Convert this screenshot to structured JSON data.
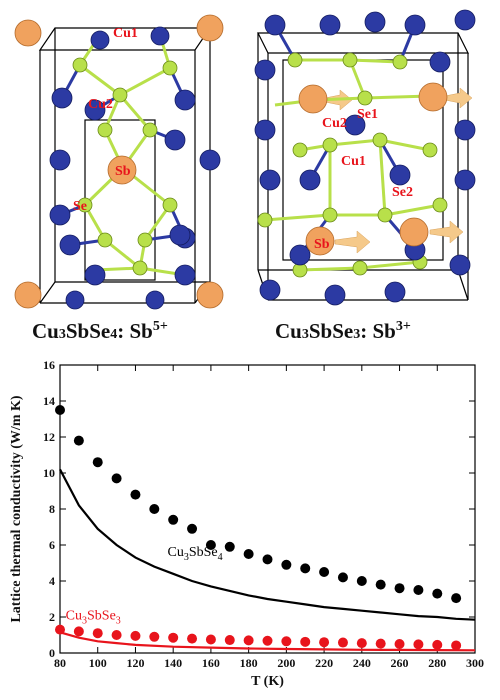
{
  "panels": {
    "left": {
      "formula_main": "Cu",
      "formula_parts": [
        "Cu",
        "3",
        "SbSe",
        "4",
        ": Sb",
        "5+"
      ],
      "atom_labels": [
        "Cu1",
        "Cu2",
        "Sb",
        "Se"
      ]
    },
    "right": {
      "formula_parts": [
        "Cu",
        "3",
        "SbSe",
        "3",
        ": Sb",
        "3+"
      ],
      "atom_labels": [
        "Cu2",
        "Se1",
        "Cu1",
        "Se2",
        "Sb"
      ]
    },
    "colors": {
      "cu": "#f0a25e",
      "sb": "#f0a25e",
      "se": "#b8e04a",
      "blue_atom": "#2c3aa3",
      "arrow": "#f5c98a",
      "label": "#e8141c"
    }
  },
  "chart_data": {
    "type": "line",
    "xlabel": "T (K)",
    "ylabel": "Lattice thermal conductivity (W/m K)",
    "xlim": [
      80,
      300
    ],
    "ylim": [
      0,
      16
    ],
    "xticks": [
      80,
      100,
      120,
      140,
      160,
      180,
      200,
      220,
      240,
      260,
      280,
      300
    ],
    "yticks": [
      0,
      2,
      4,
      6,
      8,
      10,
      12,
      14,
      16
    ],
    "series": [
      {
        "name_parts": [
          "Cu",
          "3",
          "SbSe",
          "4"
        ],
        "color": "#000000",
        "kind": "points",
        "x": [
          80,
          90,
          100,
          110,
          120,
          130,
          140,
          150,
          160,
          170,
          180,
          190,
          200,
          210,
          220,
          230,
          240,
          250,
          260,
          270,
          280,
          290
        ],
        "y": [
          13.5,
          11.8,
          10.6,
          9.7,
          8.8,
          8.0,
          7.4,
          6.9,
          6.0,
          5.9,
          5.5,
          5.2,
          4.9,
          4.7,
          4.5,
          4.2,
          4.0,
          3.8,
          3.6,
          3.5,
          3.3,
          3.05
        ]
      },
      {
        "name_parts": [
          "Cu",
          "3",
          "SbSe",
          "4"
        ],
        "color": "#000000",
        "kind": "line",
        "x": [
          80,
          90,
          100,
          110,
          120,
          130,
          140,
          150,
          160,
          170,
          180,
          190,
          200,
          210,
          220,
          230,
          240,
          250,
          260,
          270,
          280,
          290,
          300
        ],
        "y": [
          10.2,
          8.2,
          6.9,
          6.0,
          5.3,
          4.8,
          4.4,
          4.0,
          3.7,
          3.45,
          3.2,
          3.0,
          2.85,
          2.7,
          2.55,
          2.45,
          2.35,
          2.25,
          2.15,
          2.05,
          2.0,
          1.9,
          1.85
        ]
      },
      {
        "name_parts": [
          "Cu",
          "3",
          "SbSe",
          "3"
        ],
        "color": "#e8141c",
        "kind": "points",
        "x": [
          80,
          90,
          100,
          110,
          120,
          130,
          140,
          150,
          160,
          170,
          180,
          190,
          200,
          210,
          220,
          230,
          240,
          250,
          260,
          270,
          280,
          290
        ],
        "y": [
          1.3,
          1.2,
          1.1,
          1.0,
          0.95,
          0.9,
          0.85,
          0.8,
          0.75,
          0.72,
          0.7,
          0.68,
          0.65,
          0.62,
          0.6,
          0.58,
          0.55,
          0.52,
          0.5,
          0.48,
          0.45,
          0.42
        ]
      },
      {
        "name_parts": [
          "Cu",
          "3",
          "SbSe",
          "3"
        ],
        "color": "#e8141c",
        "kind": "line",
        "x": [
          80,
          90,
          100,
          110,
          120,
          140,
          160,
          180,
          200,
          220,
          240,
          260,
          280,
          300
        ],
        "y": [
          1.15,
          0.85,
          0.65,
          0.55,
          0.45,
          0.35,
          0.3,
          0.25,
          0.22,
          0.2,
          0.18,
          0.17,
          0.16,
          0.15
        ]
      }
    ]
  }
}
